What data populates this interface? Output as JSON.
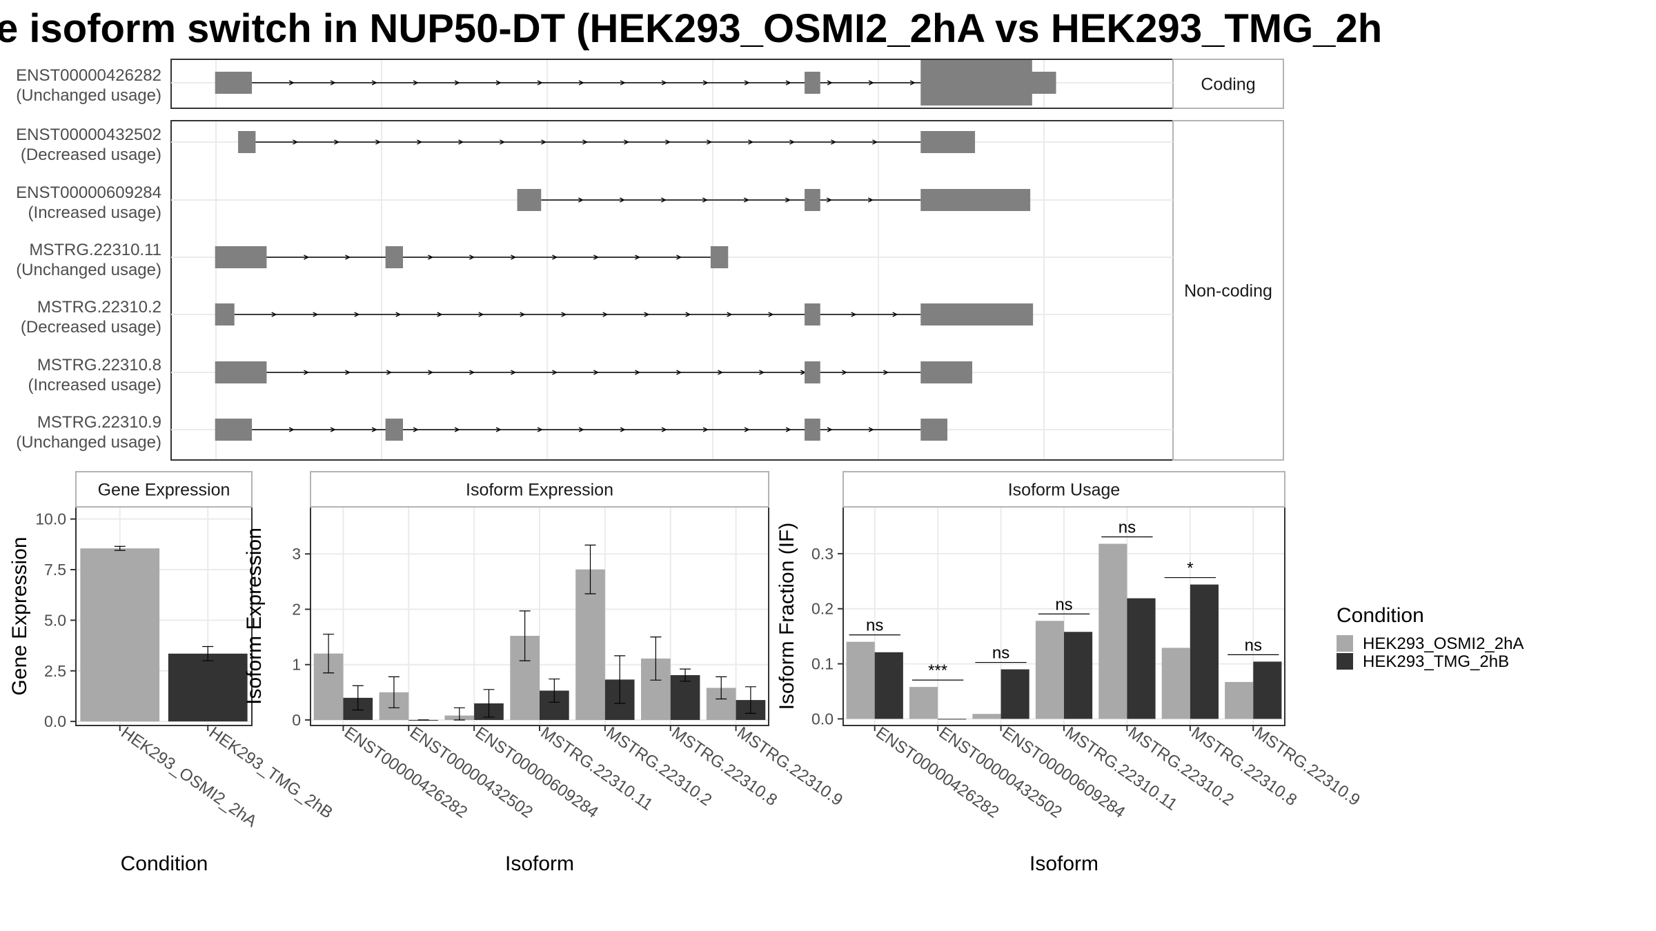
{
  "title": "e isoform switch in NUP50-DT (HEK293_OSMI2_2hA vs HEK293_TMG_2h",
  "colors": {
    "condA": "#a9a9a9",
    "condB": "#333333",
    "exon": "#808080",
    "strip_bg": "#ffffff",
    "grid": "#ebebeb"
  },
  "chart_data": [
    {
      "type": "gene-structure",
      "facets": [
        {
          "label": "Coding",
          "transcripts": [
            "ENST00000426282"
          ]
        },
        {
          "label": "Non-coding",
          "transcripts": [
            "ENST00000432502",
            "ENST00000609284",
            "MSTRG.22310.11",
            "MSTRG.22310.2",
            "MSTRG.22310.8",
            "MSTRG.22310.9"
          ]
        }
      ],
      "transcripts": [
        {
          "id": "ENST00000426282",
          "usage": "(Unchanged usage)",
          "exons": [
            [
              0.005,
              0.045
            ],
            [
              0.645,
              0.662
            ],
            [
              0.771,
              0.892,
              "thin"
            ],
            [
              0.862,
              0.918
            ]
          ]
        },
        {
          "id": "ENST00000432502",
          "usage": "(Decreased usage)",
          "exons": [
            [
              0.03,
              0.049
            ],
            [
              0.771,
              0.83
            ]
          ]
        },
        {
          "id": "ENST00000609284",
          "usage": "(Increased usage)",
          "exons": [
            [
              0.333,
              0.359
            ],
            [
              0.645,
              0.662
            ],
            [
              0.771,
              0.89
            ]
          ]
        },
        {
          "id": "MSTRG.22310.11",
          "usage": "(Unchanged usage)",
          "exons": [
            [
              0.005,
              0.061
            ],
            [
              0.19,
              0.209
            ],
            [
              0.543,
              0.562
            ]
          ]
        },
        {
          "id": "MSTRG.22310.2",
          "usage": "(Decreased usage)",
          "exons": [
            [
              0.005,
              0.026
            ],
            [
              0.645,
              0.662
            ],
            [
              0.771,
              0.893
            ]
          ]
        },
        {
          "id": "MSTRG.22310.8",
          "usage": "(Increased usage)",
          "exons": [
            [
              0.005,
              0.061
            ],
            [
              0.645,
              0.662
            ],
            [
              0.771,
              0.827
            ]
          ]
        },
        {
          "id": "MSTRG.22310.9",
          "usage": "(Unchanged usage)",
          "exons": [
            [
              0.005,
              0.045
            ],
            [
              0.19,
              0.209
            ],
            [
              0.645,
              0.662
            ],
            [
              0.771,
              0.8
            ]
          ]
        }
      ]
    },
    {
      "type": "bar",
      "strip": "Gene Expression",
      "xlabel": "Condition",
      "ylabel": "Gene Expression",
      "ylim": [
        -0.2,
        10.6
      ],
      "yticks": [
        "0.0",
        "2.5",
        "5.0",
        "7.5",
        "10.0"
      ],
      "categories": [
        "HEK293_OSMI2_2hA",
        "HEK293_TMG_2hB"
      ],
      "values": [
        8.55,
        3.35
      ],
      "err": [
        [
          8.45,
          8.65
        ],
        [
          3.0,
          3.7
        ]
      ]
    },
    {
      "type": "bar",
      "strip": "Isoform Expression",
      "xlabel": "Isoform",
      "ylabel": "Isoform Expression",
      "ylim": [
        -0.1,
        3.85
      ],
      "yticks": [
        "0",
        "1",
        "2",
        "3"
      ],
      "categories": [
        "ENST00000426282",
        "ENST00000432502",
        "ENST00000609284",
        "MSTRG.22310.11",
        "MSTRG.22310.2",
        "MSTRG.22310.8",
        "MSTRG.22310.9"
      ],
      "series": [
        {
          "name": "HEK293_OSMI2_2hA",
          "values": [
            1.2,
            0.5,
            0.08,
            1.52,
            2.72,
            1.11,
            0.58
          ],
          "err": [
            [
              0.85,
              1.55
            ],
            [
              0.22,
              0.78
            ],
            [
              0.0,
              0.22
            ],
            [
              1.07,
              1.97
            ],
            [
              2.28,
              3.16
            ],
            [
              0.72,
              1.5
            ],
            [
              0.38,
              0.78
            ]
          ]
        },
        {
          "name": "HEK293_TMG_2hB",
          "values": [
            0.4,
            0.0,
            0.3,
            0.53,
            0.73,
            0.81,
            0.36
          ],
          "err": [
            [
              0.18,
              0.62
            ],
            [
              0.0,
              0.0
            ],
            [
              0.05,
              0.55
            ],
            [
              0.32,
              0.74
            ],
            [
              0.3,
              1.16
            ],
            [
              0.7,
              0.92
            ],
            [
              0.12,
              0.6
            ]
          ]
        }
      ]
    },
    {
      "type": "bar",
      "strip": "Isoform Usage",
      "xlabel": "Isoform",
      "ylabel": "Isoform Fraction (IF)",
      "ylim": [
        -0.012,
        0.385
      ],
      "yticks": [
        "0.0",
        "0.1",
        "0.2",
        "0.3"
      ],
      "categories": [
        "ENST00000426282",
        "ENST00000432502",
        "ENST00000609284",
        "MSTRG.22310.11",
        "MSTRG.22310.2",
        "MSTRG.22310.8",
        "MSTRG.22310.9"
      ],
      "series": [
        {
          "name": "HEK293_OSMI2_2hA",
          "values": [
            0.14,
            0.058,
            0.009,
            0.178,
            0.318,
            0.129,
            0.067
          ]
        },
        {
          "name": "HEK293_TMG_2hB",
          "values": [
            0.121,
            0.0,
            0.09,
            0.158,
            0.219,
            0.244,
            0.104
          ]
        }
      ],
      "significance": [
        "ns",
        "***",
        "ns",
        "ns",
        "ns",
        "*",
        "ns"
      ]
    }
  ],
  "legend": {
    "title": "Condition",
    "placement": "right",
    "items": [
      {
        "label": "HEK293_OSMI2_2hA",
        "color": "#a9a9a9"
      },
      {
        "label": "HEK293_TMG_2hB",
        "color": "#333333"
      }
    ]
  }
}
